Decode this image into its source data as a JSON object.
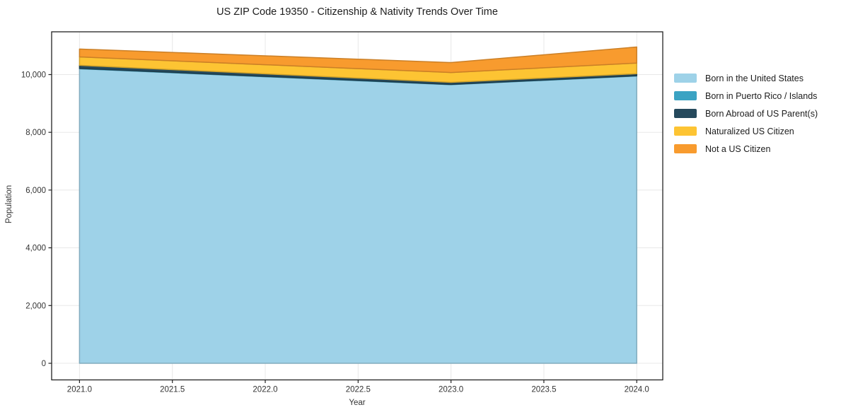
{
  "chart_data": {
    "type": "area",
    "stacked": true,
    "title": "US ZIP Code 19350 - Citizenship & Nativity Trends Over Time",
    "xlabel": "Year",
    "ylabel": "Population",
    "x": [
      2021,
      2023,
      2024
    ],
    "series": [
      {
        "name": "Born in the United States",
        "color": "#9ED2E8",
        "values": [
          10200,
          9650,
          9950
        ]
      },
      {
        "name": "Born in Puerto Rico / Islands",
        "color": "#3BA3C3",
        "values": [
          15,
          10,
          10
        ]
      },
      {
        "name": "Born Abroad of US Parent(s)",
        "color": "#25495C",
        "values": [
          105,
          70,
          70
        ]
      },
      {
        "name": "Naturalized US Citizen",
        "color": "#FDC433",
        "values": [
          293,
          340,
          370
        ]
      },
      {
        "name": "Not a US Citizen",
        "color": "#F89B2E",
        "values": [
          270,
          345,
          555
        ]
      }
    ],
    "totals": [
      10883,
      10415,
      10955
    ],
    "xticks": [
      2021.0,
      2021.5,
      2022.0,
      2022.5,
      2023.0,
      2023.5,
      2024.0
    ],
    "xtick_labels": [
      "2021.0",
      "2021.5",
      "2022.0",
      "2022.5",
      "2023.0",
      "2023.5",
      "2024.0"
    ],
    "yticks": [
      0,
      2000,
      4000,
      6000,
      8000,
      10000
    ],
    "ytick_labels": [
      "0",
      "2,000",
      "4,000",
      "6,000",
      "8,000",
      "10,000"
    ],
    "xlim": [
      2020.85,
      2024.14
    ],
    "ylim": [
      -575,
      11481
    ],
    "grid": true,
    "grid_color": "#e8e8e8",
    "spine_color": "#222222",
    "tick_label_color": "#333333",
    "background": "#ffffff",
    "legend_position": "right"
  }
}
